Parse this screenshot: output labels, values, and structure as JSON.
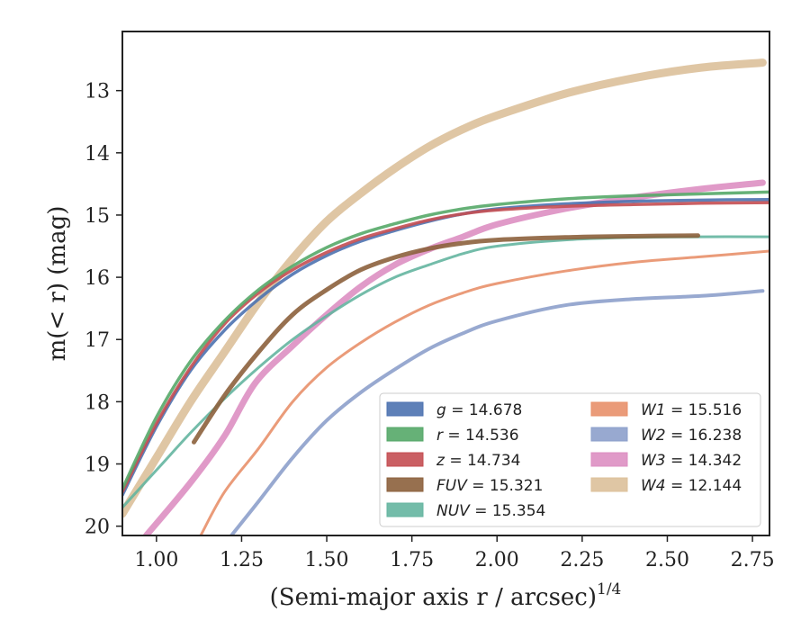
{
  "chart_data": {
    "type": "line",
    "xlabel": "(Semi-major axis r / arcsec)",
    "xlabel_sup": "1/4",
    "ylabel": "m(< r) (mag)",
    "xlim": [
      0.9,
      2.8
    ],
    "ylim": [
      20.15,
      12.05
    ],
    "y_inverted": true,
    "grid": false,
    "legend_placement": "lower-right",
    "xticks": [
      "1.00",
      "1.25",
      "1.50",
      "1.75",
      "2.00",
      "2.25",
      "2.50",
      "2.75"
    ],
    "yticks": [
      "13",
      "14",
      "15",
      "16",
      "17",
      "18",
      "19",
      "20"
    ],
    "series": [
      {
        "name": "g",
        "label": "14.678",
        "color": "#4c72b0",
        "x": [
          0.9,
          1.0,
          1.1,
          1.2,
          1.3,
          1.4,
          1.5,
          1.6,
          1.7,
          1.8,
          1.9,
          2.0,
          2.2,
          2.4,
          2.6,
          2.8
        ],
        "y": [
          19.5,
          18.4,
          17.5,
          16.85,
          16.35,
          15.95,
          15.65,
          15.42,
          15.25,
          15.1,
          14.98,
          14.9,
          14.82,
          14.78,
          14.76,
          14.75
        ]
      },
      {
        "name": "r",
        "label": "14.536",
        "color": "#55a868",
        "x": [
          0.9,
          1.0,
          1.1,
          1.2,
          1.3,
          1.4,
          1.5,
          1.6,
          1.7,
          1.8,
          1.9,
          2.0,
          2.2,
          2.4,
          2.6,
          2.8
        ],
        "y": [
          19.4,
          18.25,
          17.35,
          16.7,
          16.2,
          15.82,
          15.52,
          15.3,
          15.14,
          15.0,
          14.9,
          14.83,
          14.74,
          14.69,
          14.66,
          14.63
        ]
      },
      {
        "name": "z",
        "label": "14.734",
        "color": "#c44e52",
        "x": [
          0.9,
          1.0,
          1.1,
          1.2,
          1.3,
          1.4,
          1.5,
          1.6,
          1.7,
          1.8,
          1.9,
          2.0,
          2.2,
          2.4,
          2.6,
          2.8
        ],
        "y": [
          19.45,
          18.35,
          17.45,
          16.75,
          16.25,
          15.88,
          15.6,
          15.38,
          15.22,
          15.08,
          14.98,
          14.92,
          14.86,
          14.83,
          14.81,
          14.8
        ]
      },
      {
        "name": "FUV",
        "label": "15.321",
        "color": "#8c613c",
        "x": [
          1.11,
          1.2,
          1.3,
          1.4,
          1.5,
          1.6,
          1.7,
          1.8,
          1.9,
          2.0,
          2.2,
          2.4,
          2.59
        ],
        "y": [
          18.65,
          17.9,
          17.2,
          16.6,
          16.2,
          15.88,
          15.68,
          15.54,
          15.45,
          15.4,
          15.36,
          15.34,
          15.33
        ]
      },
      {
        "name": "NUV",
        "label": "15.354",
        "color": "#64b5a0",
        "x": [
          0.9,
          1.0,
          1.1,
          1.2,
          1.3,
          1.4,
          1.5,
          1.6,
          1.7,
          1.8,
          1.9,
          2.0,
          2.2,
          2.4,
          2.6,
          2.8
        ],
        "y": [
          19.7,
          19.1,
          18.5,
          17.95,
          17.45,
          17.0,
          16.62,
          16.28,
          16.0,
          15.8,
          15.62,
          15.5,
          15.4,
          15.36,
          15.35,
          15.35
        ]
      },
      {
        "name": "W1",
        "label": "15.516",
        "color": "#e8906a",
        "x": [
          1.13,
          1.2,
          1.3,
          1.4,
          1.5,
          1.6,
          1.7,
          1.8,
          1.9,
          2.0,
          2.2,
          2.4,
          2.6,
          2.8
        ],
        "y": [
          20.15,
          19.45,
          18.75,
          18.0,
          17.45,
          17.05,
          16.72,
          16.45,
          16.25,
          16.1,
          15.9,
          15.76,
          15.67,
          15.58
        ]
      },
      {
        "name": "W2",
        "label": "16.238",
        "color": "#8da0cb",
        "x": [
          1.22,
          1.3,
          1.4,
          1.5,
          1.6,
          1.7,
          1.8,
          1.9,
          2.0,
          2.2,
          2.4,
          2.6,
          2.78
        ],
        "y": [
          20.15,
          19.6,
          18.9,
          18.3,
          17.85,
          17.48,
          17.15,
          16.9,
          16.7,
          16.45,
          16.35,
          16.3,
          16.22
        ]
      },
      {
        "name": "W3",
        "label": "14.342",
        "color": "#dd8fc2",
        "x": [
          0.97,
          1.1,
          1.2,
          1.29,
          1.4,
          1.5,
          1.6,
          1.7,
          1.8,
          1.9,
          2.0,
          2.2,
          2.4,
          2.6,
          2.78
        ],
        "y": [
          20.15,
          19.3,
          18.55,
          17.7,
          17.1,
          16.6,
          16.15,
          15.8,
          15.55,
          15.35,
          15.15,
          14.9,
          14.72,
          14.58,
          14.48
        ]
      },
      {
        "name": "W4",
        "label": "12.144",
        "color": "#dcc09a",
        "x": [
          0.9,
          1.0,
          1.1,
          1.2,
          1.3,
          1.4,
          1.5,
          1.6,
          1.7,
          1.8,
          1.9,
          2.0,
          2.2,
          2.4,
          2.6,
          2.78
        ],
        "y": [
          19.8,
          18.9,
          18.0,
          17.2,
          16.4,
          15.7,
          15.1,
          14.65,
          14.25,
          13.9,
          13.62,
          13.4,
          13.05,
          12.8,
          12.63,
          12.55
        ]
      }
    ]
  }
}
